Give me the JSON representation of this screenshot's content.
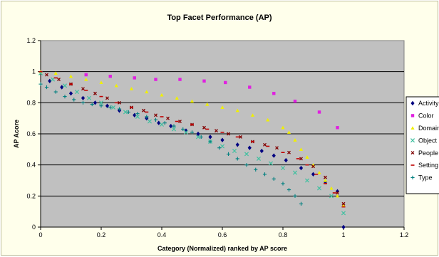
{
  "chart_data": {
    "type": "scatter",
    "title": "Top Facet Performance (AP)",
    "xlabel": "Category (Normalized) ranked by AP score",
    "ylabel": "AP Acore",
    "xlim": [
      0,
      1.2
    ],
    "ylim": [
      0,
      1.2
    ],
    "x_ticks": [
      "0",
      "0.2",
      "0.4",
      "0.6",
      "0.8",
      "1",
      "1.2"
    ],
    "y_ticks": [
      "0",
      "0.2",
      "0.4",
      "0.6",
      "0.8",
      "1",
      "1.2"
    ],
    "grid": "horizontal",
    "legend_position": "right",
    "series": [
      {
        "name": "Activity",
        "color": "#000080",
        "marker": "diamond",
        "x": [
          0.03,
          0.07,
          0.1,
          0.14,
          0.18,
          0.22,
          0.26,
          0.31,
          0.35,
          0.39,
          0.43,
          0.48,
          0.52,
          0.56,
          0.6,
          0.65,
          0.69,
          0.73,
          0.77,
          0.81,
          0.86,
          0.9,
          0.94,
          0.98,
          1.0
        ],
        "y": [
          0.94,
          0.9,
          0.86,
          0.83,
          0.8,
          0.78,
          0.75,
          0.72,
          0.7,
          0.67,
          0.65,
          0.62,
          0.6,
          0.58,
          0.56,
          0.53,
          0.51,
          0.49,
          0.46,
          0.43,
          0.38,
          0.34,
          0.29,
          0.23,
          0.0
        ]
      },
      {
        "name": "Color",
        "color": "#e020e0",
        "marker": "square",
        "x": [
          0.15,
          0.23,
          0.31,
          0.38,
          0.46,
          0.54,
          0.61,
          0.69,
          0.77,
          0.84,
          0.92,
          0.98
        ],
        "y": [
          0.98,
          0.97,
          0.96,
          0.95,
          0.95,
          0.94,
          0.93,
          0.9,
          0.86,
          0.81,
          0.74,
          0.64
        ]
      },
      {
        "name": "Domain",
        "color": "#f0f000",
        "marker": "triangle",
        "x": [
          0.0,
          0.05,
          0.1,
          0.15,
          0.2,
          0.25,
          0.3,
          0.35,
          0.4,
          0.45,
          0.5,
          0.55,
          0.6,
          0.65,
          0.7,
          0.75,
          0.8,
          0.82,
          0.84,
          0.86,
          0.88,
          0.9,
          0.92,
          0.94,
          0.96,
          0.98,
          1.0
        ],
        "y": [
          1.0,
          0.99,
          0.97,
          0.95,
          0.93,
          0.91,
          0.89,
          0.87,
          0.85,
          0.83,
          0.81,
          0.79,
          0.77,
          0.75,
          0.72,
          0.69,
          0.64,
          0.61,
          0.56,
          0.5,
          0.45,
          0.4,
          0.35,
          0.3,
          0.25,
          0.2,
          0.14
        ]
      },
      {
        "name": "Object",
        "color": "#40c0a0",
        "marker": "x",
        "x": [
          0.0,
          0.04,
          0.08,
          0.12,
          0.16,
          0.2,
          0.24,
          0.28,
          0.32,
          0.36,
          0.4,
          0.44,
          0.48,
          0.52,
          0.56,
          0.6,
          0.64,
          0.68,
          0.72,
          0.76,
          0.8,
          0.84,
          0.88,
          0.92,
          0.96,
          1.0
        ],
        "y": [
          0.99,
          0.95,
          0.91,
          0.87,
          0.83,
          0.8,
          0.77,
          0.74,
          0.71,
          0.68,
          0.66,
          0.63,
          0.61,
          0.58,
          0.55,
          0.52,
          0.49,
          0.47,
          0.44,
          0.41,
          0.38,
          0.35,
          0.3,
          0.25,
          0.2,
          0.09
        ]
      },
      {
        "name": "People",
        "color": "#800000",
        "marker": "cross",
        "x": [
          0.02,
          0.06,
          0.1,
          0.14,
          0.18,
          0.22,
          0.26,
          0.3,
          0.34,
          0.38,
          0.42,
          0.46,
          0.5,
          0.54,
          0.58,
          0.62,
          0.66,
          0.7,
          0.74,
          0.78,
          0.82,
          0.86,
          0.9,
          0.94,
          0.98,
          1.0
        ],
        "y": [
          0.98,
          0.95,
          0.92,
          0.89,
          0.86,
          0.83,
          0.8,
          0.77,
          0.75,
          0.72,
          0.7,
          0.68,
          0.66,
          0.64,
          0.62,
          0.6,
          0.58,
          0.55,
          0.53,
          0.51,
          0.48,
          0.44,
          0.39,
          0.32,
          0.22,
          0.15
        ]
      },
      {
        "name": "Setting",
        "color": "#c00000",
        "marker": "dash",
        "x": [
          0.0,
          0.05,
          0.1,
          0.15,
          0.2,
          0.25,
          0.3,
          0.35,
          0.4,
          0.45,
          0.5,
          0.55,
          0.6,
          0.65,
          0.7,
          0.75,
          0.8,
          0.85,
          0.88,
          0.91,
          0.94,
          0.97,
          1.0
        ],
        "y": [
          1.0,
          0.96,
          0.92,
          0.88,
          0.84,
          0.8,
          0.77,
          0.74,
          0.71,
          0.68,
          0.66,
          0.63,
          0.61,
          0.58,
          0.55,
          0.52,
          0.48,
          0.44,
          0.4,
          0.34,
          0.28,
          0.22,
          0.13
        ]
      },
      {
        "name": "Type",
        "color": "#008080",
        "marker": "plus",
        "x": [
          0.0,
          0.02,
          0.05,
          0.08,
          0.11,
          0.14,
          0.17,
          0.2,
          0.23,
          0.26,
          0.29,
          0.32,
          0.35,
          0.38,
          0.41,
          0.44,
          0.47,
          0.5,
          0.53,
          0.56,
          0.59,
          0.62,
          0.65,
          0.68,
          0.71,
          0.74,
          0.77,
          0.8,
          0.82,
          0.84,
          0.86
        ],
        "y": [
          0.92,
          0.9,
          0.87,
          0.84,
          0.82,
          0.8,
          0.79,
          0.78,
          0.77,
          0.76,
          0.74,
          0.73,
          0.71,
          0.69,
          0.67,
          0.65,
          0.63,
          0.61,
          0.58,
          0.55,
          0.51,
          0.47,
          0.44,
          0.4,
          0.37,
          0.34,
          0.31,
          0.28,
          0.24,
          0.2,
          0.15
        ]
      }
    ]
  }
}
